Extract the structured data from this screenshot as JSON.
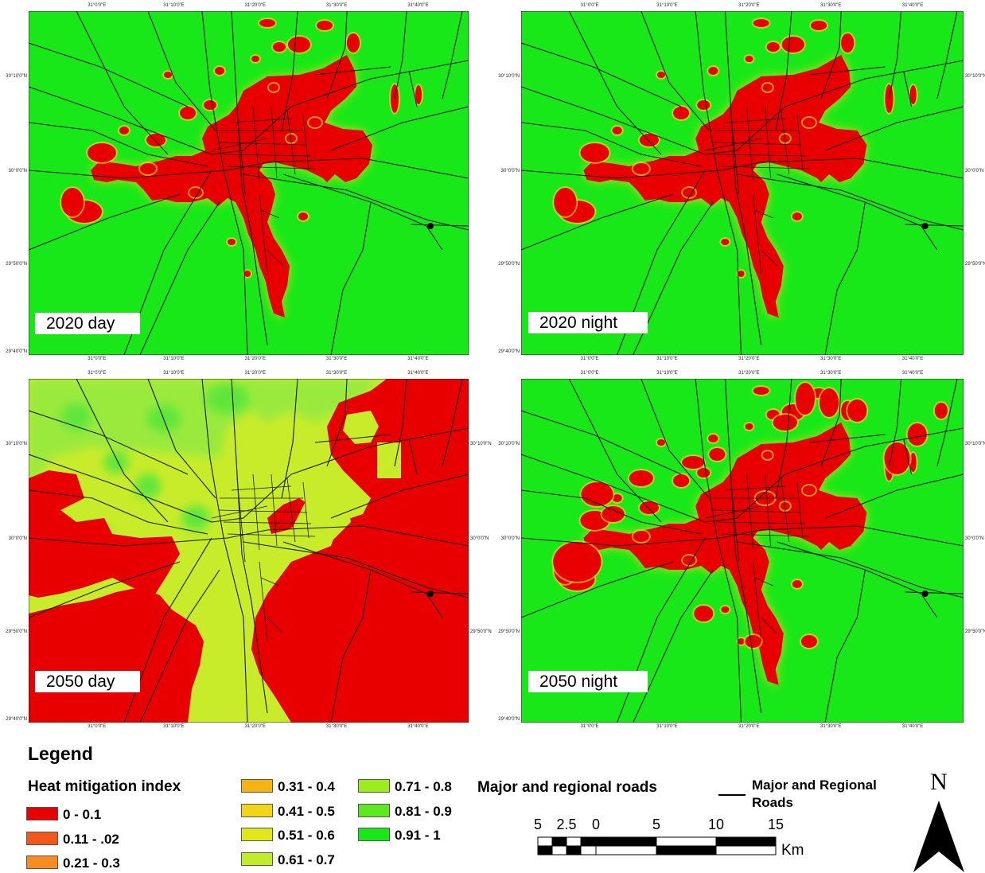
{
  "colors": {
    "background_green": "#18e818",
    "urban_red": "#e80000",
    "road_color": "#1a1a1a"
  },
  "panels": [
    {
      "id": "2020-day",
      "label": "2020 day",
      "scenario": "low-heat"
    },
    {
      "id": "2020-night",
      "label": "2020 night",
      "scenario": "low-heat"
    },
    {
      "id": "2050-day",
      "label": "2050 day",
      "scenario": "high-heat"
    },
    {
      "id": "2050-night",
      "label": "2050 night",
      "scenario": "low-heat"
    }
  ],
  "graticule": {
    "longitudes": [
      "31°0'0\"E",
      "31°10'0\"E",
      "31°20'0\"E",
      "31°30'0\"E",
      "31°40'0\"E"
    ],
    "latitudes": [
      "30°10'0\"N",
      "30°0'0\"N",
      "29°50'0\"N",
      "29°40'0\"N"
    ]
  },
  "legend": {
    "title": "Legend",
    "index_title": "Heat mitigation index",
    "classes": [
      {
        "label": "0 - 0.1",
        "color": "#e80000"
      },
      {
        "label": "0.11 - .02",
        "color": "#f2581a"
      },
      {
        "label": "0.21 - 0.3",
        "color": "#f88c22"
      },
      {
        "label": "0.31 - 0.4",
        "color": "#f7b214"
      },
      {
        "label": "0.41 - 0.5",
        "color": "#f2d418"
      },
      {
        "label": "0.51 - 0.6",
        "color": "#e0e81c"
      },
      {
        "label": "0.61 - 0.7",
        "color": "#c2ec2a"
      },
      {
        "label": "0.71 - 0.8",
        "color": "#9bee1c"
      },
      {
        "label": "0.81 - 0.9",
        "color": "#5ee81e"
      },
      {
        "label": "0.91 - 1",
        "color": "#18e818"
      }
    ],
    "roads_title": "Major and regional roads",
    "roads_label": "Major and Regional Roads"
  },
  "scale_bar": {
    "ticks": [
      "5",
      "2.5",
      "0",
      "5",
      "10",
      "15"
    ],
    "unit": "Km"
  },
  "north_arrow": {
    "letter": "N"
  }
}
